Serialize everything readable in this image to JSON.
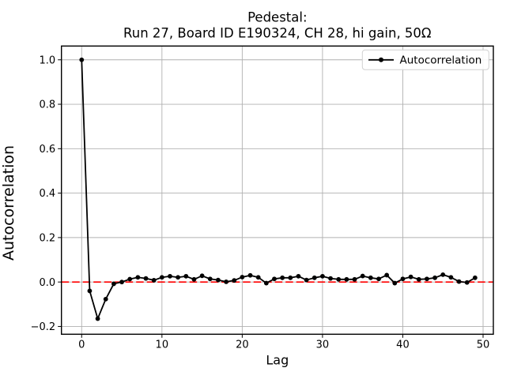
{
  "figure": {
    "background": "#ffffff"
  },
  "chart_data": {
    "type": "line",
    "title_line1": "Pedestal:",
    "title_line2": "Run 27, Board ID E190324, CH 28, hi gain, 50Ω",
    "xlabel": "Lag",
    "ylabel": "Autocorrelation",
    "grid": true,
    "grid_color": "#b0b0b0",
    "frame_color": "#000000",
    "legend": {
      "label": "Autocorrelation",
      "position": "upper right"
    },
    "zero_line": {
      "y": 0.0,
      "color": "#ff0000",
      "style": "dashed"
    },
    "x_ticks": [
      0,
      10,
      20,
      30,
      40,
      50
    ],
    "y_ticks": [
      -0.2,
      0.0,
      0.2,
      0.4,
      0.6,
      0.8,
      1.0
    ],
    "xlim": [
      -2.52,
      51.28
    ],
    "ylim": [
      -0.235,
      1.062
    ],
    "series": [
      {
        "name": "Autocorrelation",
        "color": "#000000",
        "marker": "point",
        "x": [
          0,
          1,
          2,
          3,
          4,
          5,
          6,
          7,
          8,
          9,
          10,
          11,
          12,
          13,
          14,
          15,
          16,
          17,
          18,
          19,
          20,
          21,
          22,
          23,
          24,
          25,
          26,
          27,
          28,
          29,
          30,
          31,
          32,
          33,
          34,
          35,
          36,
          37,
          38,
          39,
          40,
          41,
          42,
          43,
          44,
          45,
          46,
          47,
          48,
          49
        ],
        "values": [
          1.0,
          -0.04,
          -0.165,
          -0.077,
          -0.008,
          0.0,
          0.013,
          0.021,
          0.016,
          0.008,
          0.021,
          0.026,
          0.021,
          0.026,
          0.012,
          0.028,
          0.014,
          0.009,
          0.001,
          0.007,
          0.022,
          0.03,
          0.021,
          -0.005,
          0.014,
          0.019,
          0.019,
          0.026,
          0.009,
          0.019,
          0.026,
          0.016,
          0.012,
          0.012,
          0.012,
          0.027,
          0.019,
          0.014,
          0.031,
          -0.005,
          0.014,
          0.023,
          0.012,
          0.014,
          0.019,
          0.033,
          0.021,
          0.002,
          -0.002,
          0.019
        ]
      }
    ]
  }
}
